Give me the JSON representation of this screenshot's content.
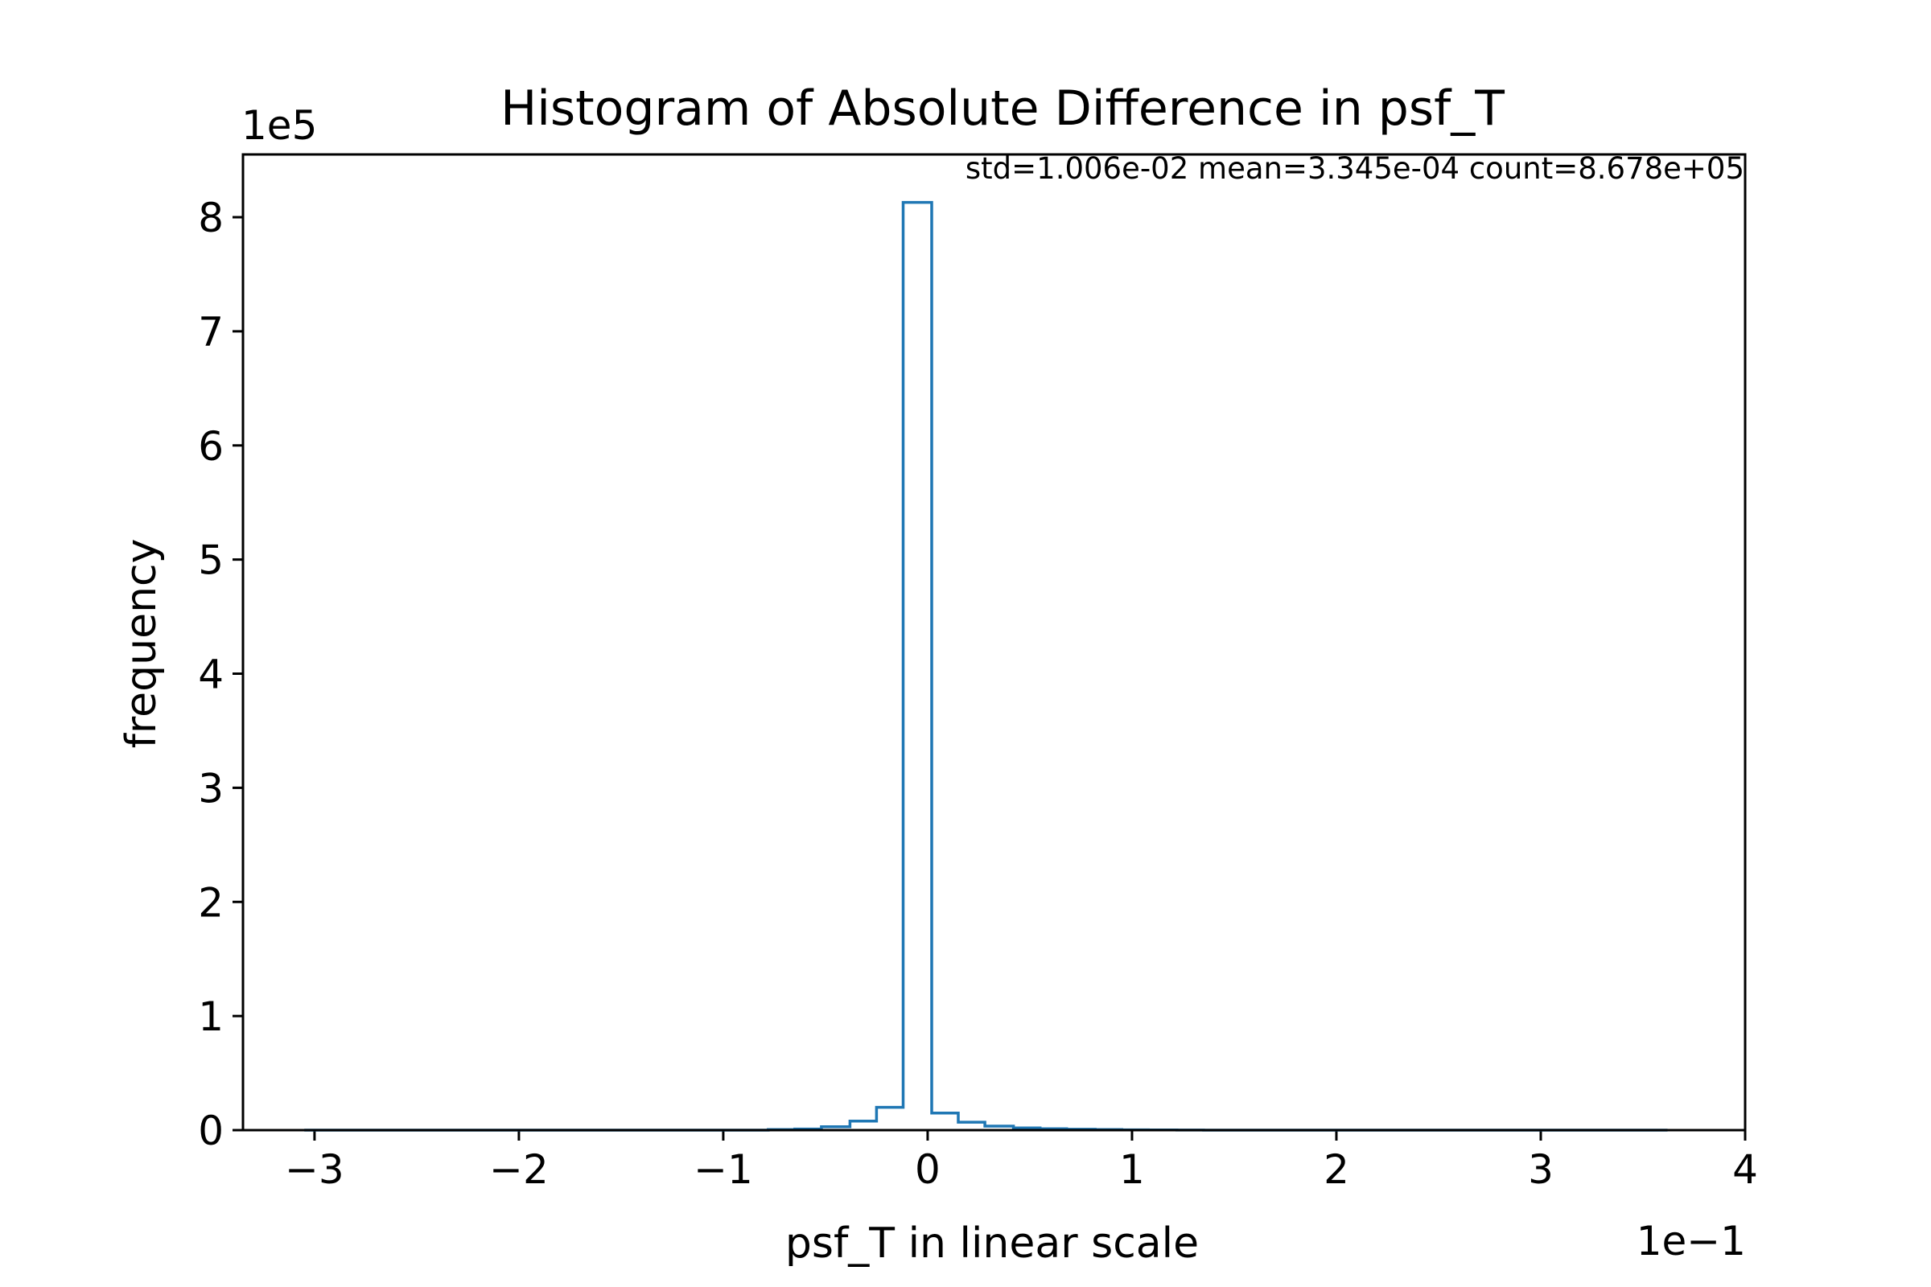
{
  "chart_data": {
    "type": "bar",
    "title": "Histogram of Absolute Difference in psf_T",
    "xlabel": "psf_T in linear scale",
    "ylabel": "frequency",
    "x_offset_text": "1e−1",
    "y_offset_text": "1e5",
    "annotation": "std=1.006e-02 mean=3.345e-04 count=8.678e+05",
    "xlim": [
      -3.35,
      4.0
    ],
    "ylim": [
      0,
      8.55
    ],
    "x_ticks": [
      -3,
      -2,
      -1,
      0,
      1,
      2,
      3,
      4
    ],
    "x_tick_labels": [
      "−3",
      "−2",
      "−1",
      "0",
      "1",
      "2",
      "3",
      "4"
    ],
    "y_ticks": [
      0,
      1,
      2,
      3,
      4,
      5,
      6,
      7,
      8
    ],
    "y_tick_labels": [
      "0",
      "1",
      "2",
      "3",
      "4",
      "5",
      "6",
      "7",
      "8"
    ],
    "grid": false,
    "histtype": "step",
    "color": "#1f77b4",
    "bin_edges": [
      -3.05,
      -2.92,
      -2.78,
      -2.65,
      -2.52,
      -2.38,
      -2.25,
      -2.12,
      -1.98,
      -1.85,
      -1.72,
      -1.58,
      -1.45,
      -1.32,
      -1.18,
      -1.05,
      -0.92,
      -0.78,
      -0.65,
      -0.52,
      -0.38,
      -0.25,
      -0.12,
      0.02,
      0.15,
      0.28,
      0.42,
      0.55,
      0.68,
      0.82,
      0.95,
      1.08,
      1.22,
      1.35,
      1.48,
      1.62,
      1.75,
      1.88,
      2.02,
      2.15,
      2.28,
      2.42,
      2.55,
      2.68,
      2.82,
      2.95,
      3.08,
      3.22,
      3.35,
      3.48,
      3.62
    ],
    "values": [
      0,
      0,
      0,
      0,
      0,
      0,
      0,
      0,
      0,
      0,
      0,
      0,
      0,
      0,
      0,
      0,
      0,
      0.005,
      0.01,
      0.03,
      0.08,
      0.2,
      8.13,
      0.15,
      0.07,
      0.035,
      0.02,
      0.012,
      0.008,
      0.005,
      0.003,
      0.002,
      0.001,
      0,
      0,
      0,
      0,
      0,
      0,
      0,
      0,
      0,
      0,
      0,
      0,
      0,
      0,
      0,
      0,
      0
    ]
  }
}
